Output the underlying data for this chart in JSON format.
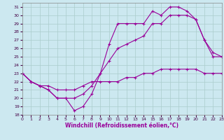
{
  "background_color": "#cce8f0",
  "grid_color": "#aacccc",
  "line_color": "#990099",
  "xlabel": "Windchill (Refroidissement éolien,°C)",
  "xlim": [
    0,
    23
  ],
  "ylim": [
    18,
    31.5
  ],
  "xticks": [
    0,
    1,
    2,
    3,
    4,
    5,
    6,
    7,
    8,
    9,
    10,
    11,
    12,
    13,
    14,
    15,
    16,
    17,
    18,
    19,
    20,
    21,
    22,
    23
  ],
  "yticks": [
    18,
    19,
    20,
    21,
    22,
    23,
    24,
    25,
    26,
    27,
    28,
    29,
    30,
    31
  ],
  "line1_x": [
    0,
    1,
    2,
    3,
    4,
    5,
    6,
    7,
    8,
    9,
    10,
    11,
    12,
    13,
    14,
    15,
    16,
    17,
    18,
    19,
    20,
    21,
    22,
    23
  ],
  "line1_y": [
    23,
    22,
    21.5,
    21,
    20,
    20,
    18.5,
    19,
    20.5,
    23,
    26.5,
    29,
    29,
    29,
    29,
    30.5,
    30,
    31,
    31,
    30.5,
    29.5,
    27,
    25.5,
    25
  ],
  "line2_x": [
    0,
    1,
    2,
    3,
    4,
    5,
    6,
    7,
    8,
    9,
    10,
    11,
    12,
    13,
    14,
    15,
    16,
    17,
    18,
    19,
    20,
    21,
    22,
    23
  ],
  "line2_y": [
    23,
    22,
    21.5,
    21,
    20,
    20,
    20,
    20.5,
    21.5,
    23,
    24.5,
    26,
    26.5,
    27,
    27.5,
    29,
    29,
    30,
    30,
    30,
    29.5,
    27,
    25,
    25
  ],
  "line3_x": [
    0,
    1,
    2,
    3,
    4,
    5,
    6,
    7,
    8,
    9,
    10,
    11,
    12,
    13,
    14,
    15,
    16,
    17,
    18,
    19,
    20,
    21,
    22,
    23
  ],
  "line3_y": [
    23,
    22,
    21.5,
    21.5,
    21,
    21,
    21,
    21.5,
    22,
    22,
    22,
    22,
    22.5,
    22.5,
    23,
    23,
    23.5,
    23.5,
    23.5,
    23.5,
    23.5,
    23,
    23,
    23
  ]
}
